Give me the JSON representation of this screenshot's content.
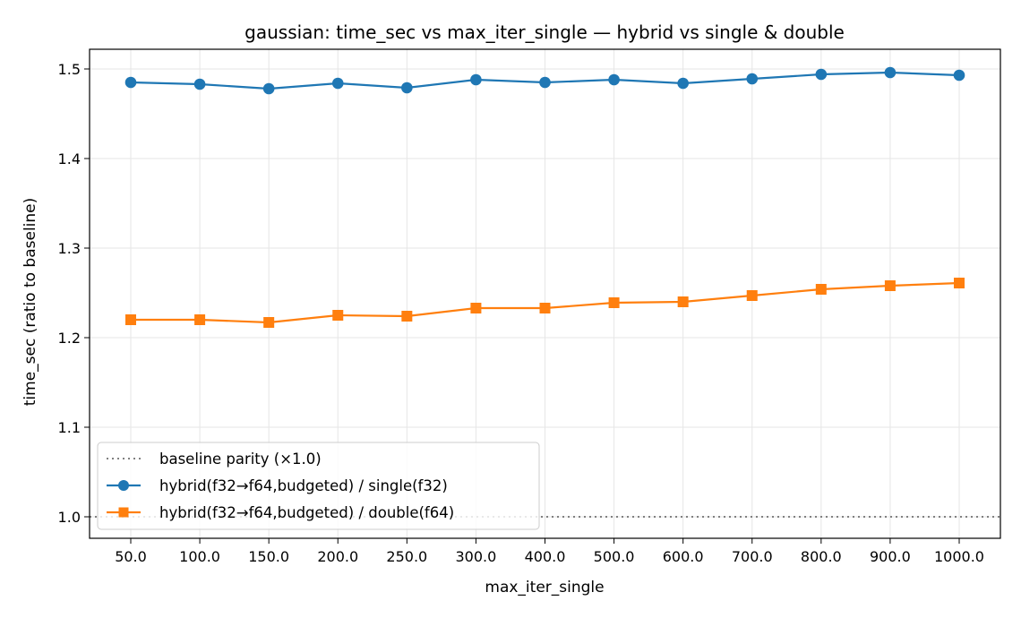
{
  "chart_data": {
    "type": "line",
    "title": "gaussian: time_sec vs max_iter_single — hybrid vs single & double",
    "xlabel": "max_iter_single",
    "ylabel": "time_sec (ratio to baseline)",
    "categories": [
      "50.0",
      "100.0",
      "150.0",
      "200.0",
      "250.0",
      "300.0",
      "400.0",
      "500.0",
      "600.0",
      "700.0",
      "800.0",
      "900.0",
      "1000.0"
    ],
    "ylim": [
      0.976,
      1.522
    ],
    "yticks": [
      "1.0",
      "1.1",
      "1.2",
      "1.3",
      "1.4",
      "1.5"
    ],
    "grid": true,
    "legend_position": "lower-left",
    "baseline": {
      "name": "baseline parity (×1.0)",
      "value": 1.0,
      "color": "#808080",
      "style": "dotted"
    },
    "series": [
      {
        "name": "hybrid(f32→f64,budgeted) / single(f32)",
        "color": "#1f77b4",
        "marker": "circle",
        "values": [
          1.485,
          1.483,
          1.478,
          1.484,
          1.479,
          1.488,
          1.485,
          1.488,
          1.484,
          1.489,
          1.494,
          1.496,
          1.493
        ]
      },
      {
        "name": "hybrid(f32→f64,budgeted) / double(f64)",
        "color": "#ff7f0e",
        "marker": "square",
        "values": [
          1.22,
          1.22,
          1.217,
          1.225,
          1.224,
          1.233,
          1.233,
          1.239,
          1.24,
          1.247,
          1.254,
          1.258,
          1.261
        ]
      }
    ]
  }
}
